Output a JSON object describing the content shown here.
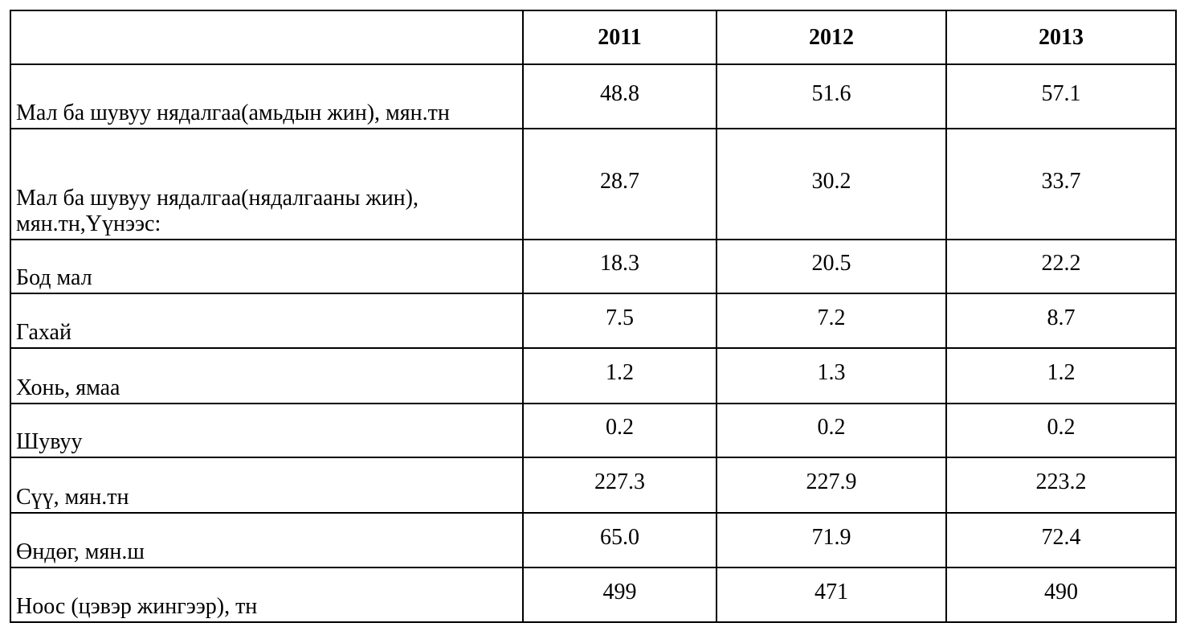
{
  "table": {
    "header": [
      "2011",
      "2012",
      "2013"
    ],
    "rows": [
      [
        "Мал ба шувуу нядалгаа(амьдын жин), мян.тн",
        "48.8",
        "51.6",
        "57.1"
      ],
      [
        "Мал ба шувуу нядалгаа(нядалгааны жин), мян.тн,Үүнээс:",
        "28.7",
        "30.2",
        "33.7"
      ],
      [
        "Бод мал",
        "18.3",
        "20.5",
        "22.2"
      ],
      [
        "Гахай",
        "7.5",
        "7.2",
        "8.7"
      ],
      [
        "Хонь, ямаа",
        "1.2",
        "1.3",
        "1.2"
      ],
      [
        "Шувуу",
        "0.2",
        "0.2",
        "0.2"
      ],
      [
        "Сүү, мян.тн",
        "227.3",
        "227.9",
        "223.2"
      ],
      [
        "Өндөг, мян.ш",
        "65.0",
        "71.9",
        "72.4"
      ],
      [
        "Ноос (цэвэр жингээр), тн",
        "499",
        "471",
        "490"
      ]
    ]
  }
}
